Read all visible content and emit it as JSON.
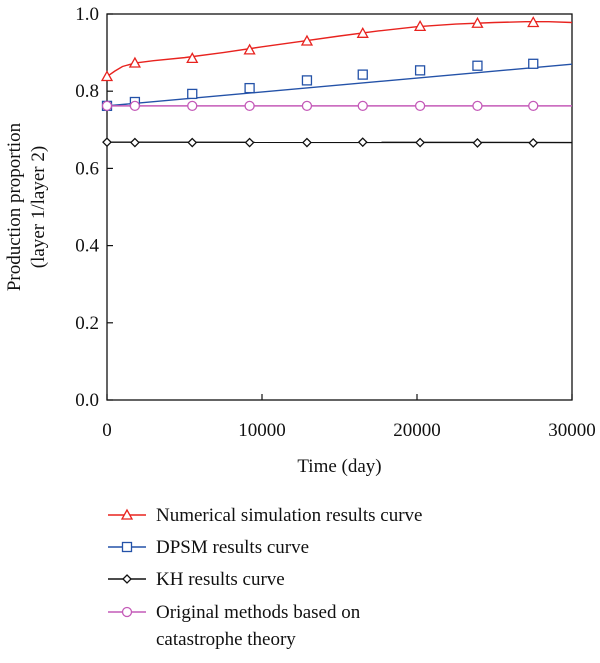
{
  "chart_data": {
    "type": "line",
    "title": "",
    "xlabel": "Time (day)",
    "ylabel": [
      "Production proportion",
      "(layer 1/layer 2)"
    ],
    "xlim": [
      0,
      30000
    ],
    "ylim": [
      0,
      1.0
    ],
    "xticks": [
      0,
      10000,
      20000,
      30000
    ],
    "xtick_labels": [
      "0",
      "10000",
      "20000",
      "30000"
    ],
    "yticks": [
      0,
      0.2,
      0.4,
      0.6,
      0.8,
      1.0
    ],
    "ytick_labels": [
      "0.0",
      "0.2",
      "0.4",
      "0.6",
      "0.8",
      "1.0"
    ],
    "grid": false,
    "legend_position": "below plot",
    "series": [
      {
        "name": "Numerical simulation results curve",
        "color": "#e8231f",
        "marker": "triangle",
        "curve_x": [
          0,
          500,
          1000,
          1800,
          3000,
          5000,
          7500,
          10000,
          12500,
          15000,
          17500,
          20000,
          22500,
          25000,
          27000,
          28500,
          30000
        ],
        "curve_y": [
          0.838,
          0.852,
          0.864,
          0.873,
          0.879,
          0.887,
          0.9,
          0.915,
          0.929,
          0.943,
          0.956,
          0.967,
          0.974,
          0.978,
          0.98,
          0.98,
          0.978
        ],
        "marker_x": [
          0,
          1800,
          5500,
          9200,
          12900,
          16500,
          20200,
          23900,
          27500
        ],
        "marker_y": [
          0.838,
          0.873,
          0.885,
          0.907,
          0.93,
          0.95,
          0.968,
          0.976,
          0.978
        ]
      },
      {
        "name": "DPSM results curve",
        "color": "#2452a8",
        "marker": "square",
        "curve_x": [
          0,
          30000
        ],
        "curve_y": [
          0.762,
          0.87
        ],
        "marker_x": [
          0,
          1800,
          5500,
          9200,
          12900,
          16500,
          20200,
          23900,
          27500
        ],
        "marker_y": [
          0.762,
          0.772,
          0.793,
          0.808,
          0.828,
          0.843,
          0.854,
          0.866,
          0.871
        ]
      },
      {
        "name": "KH results curve",
        "color": "#111111",
        "marker": "diamond",
        "curve_x": [
          0,
          30000
        ],
        "curve_y": [
          0.668,
          0.667
        ],
        "marker_x": [
          0,
          1800,
          5500,
          9200,
          12900,
          16500,
          20200,
          23900,
          27500
        ],
        "marker_y": [
          0.668,
          0.667,
          0.667,
          0.667,
          0.667,
          0.668,
          0.667,
          0.666,
          0.666
        ]
      },
      {
        "name": "Original methods based on catastrophe theory",
        "legend_lines": [
          "Original methods based on",
          "catastrophe theory"
        ],
        "color": "#c45ab8",
        "marker": "circle",
        "curve_x": [
          0,
          30000
        ],
        "curve_y": [
          0.762,
          0.762
        ],
        "marker_x": [
          0,
          1800,
          5500,
          9200,
          12900,
          16500,
          20200,
          23900,
          27500
        ],
        "marker_y": [
          0.762,
          0.762,
          0.762,
          0.762,
          0.762,
          0.762,
          0.762,
          0.762,
          0.762
        ]
      }
    ]
  }
}
